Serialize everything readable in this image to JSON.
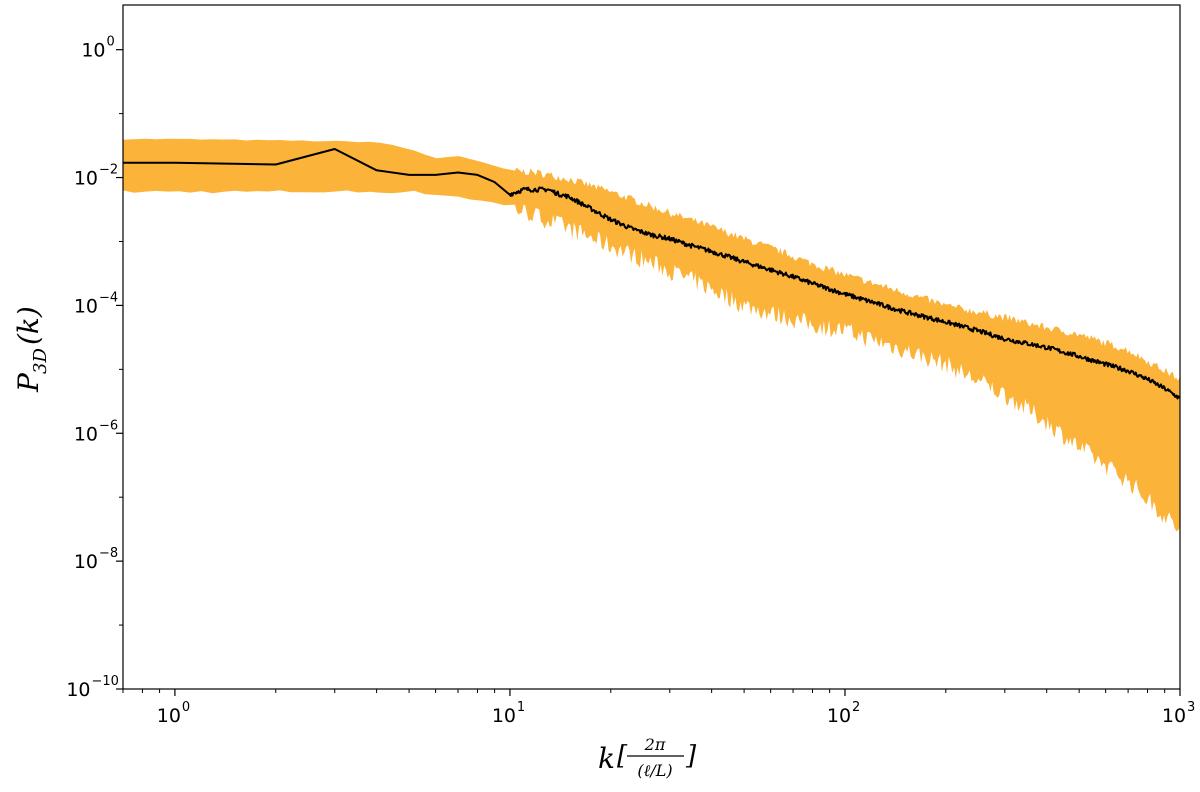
{
  "chart_data": {
    "type": "area",
    "title": "",
    "xlabel": {
      "base": "k",
      "bracket_open": "[",
      "numerator": "2π",
      "denominator": "(ℓ/L)",
      "bracket_close": "]"
    },
    "ylabel": {
      "base": "P",
      "subscript": "3D",
      "arg": "(k)"
    },
    "xscale": "log",
    "yscale": "log",
    "xlim": [
      0.7,
      1000
    ],
    "ylim": [
      1e-10,
      5
    ],
    "x_ticks": [
      {
        "value": 1,
        "base": "10",
        "exp": "0"
      },
      {
        "value": 10,
        "base": "10",
        "exp": "1"
      },
      {
        "value": 100,
        "base": "10",
        "exp": "2"
      },
      {
        "value": 1000,
        "base": "10",
        "exp": "3"
      }
    ],
    "y_ticks": [
      {
        "value": 1,
        "base": "10",
        "exp": "0"
      },
      {
        "value": 0.01,
        "base": "10",
        "exp": "−2"
      },
      {
        "value": 0.0001,
        "base": "10",
        "exp": "−4"
      },
      {
        "value": 1e-06,
        "base": "10",
        "exp": "−6"
      },
      {
        "value": 1e-08,
        "base": "10",
        "exp": "−8"
      },
      {
        "value": 1e-10,
        "base": "10",
        "exp": "−10"
      }
    ],
    "grid": false,
    "colors": {
      "line": "#000000",
      "band": "#fbb33a"
    },
    "series": [
      {
        "role": "mean",
        "x": [
          0.7,
          1,
          2,
          3,
          4,
          5,
          6,
          7,
          8,
          9,
          10,
          11,
          12,
          13,
          14,
          15,
          17,
          20,
          23,
          26,
          30,
          35,
          40,
          50,
          60,
          70,
          80,
          100,
          130,
          150,
          200,
          250,
          300,
          400,
          500,
          600,
          700,
          800,
          900,
          1000
        ],
        "y": [
          0.017,
          0.017,
          0.016,
          0.028,
          0.013,
          0.011,
          0.011,
          0.012,
          0.011,
          0.0085,
          0.0055,
          0.0065,
          0.0065,
          0.0065,
          0.0055,
          0.005,
          0.0035,
          0.0022,
          0.0016,
          0.0013,
          0.0011,
          0.00085,
          0.0007,
          0.00048,
          0.00036,
          0.00028,
          0.00022,
          0.00015,
          0.0001,
          8e-05,
          5.5e-05,
          4e-05,
          3e-05,
          2.2e-05,
          1.6e-05,
          1.2e-05,
          9.5e-06,
          7e-06,
          5e-06,
          3.5e-06
        ]
      },
      {
        "role": "band",
        "x": [
          0.7,
          1,
          2,
          3,
          4,
          5,
          6,
          7,
          8,
          9,
          10,
          12,
          15,
          20,
          30,
          40,
          50,
          60,
          80,
          100,
          150,
          200,
          300,
          400,
          500,
          700,
          1000
        ],
        "upper": [
          0.04,
          0.04,
          0.038,
          0.037,
          0.036,
          0.028,
          0.02,
          0.022,
          0.018,
          0.015,
          0.013,
          0.012,
          0.0095,
          0.006,
          0.0028,
          0.0017,
          0.0011,
          0.0008,
          0.00045,
          0.0003,
          0.00016,
          0.0001,
          6.5e-05,
          4.5e-05,
          3.5e-05,
          2e-05,
          7e-06
        ],
        "lower": [
          0.006,
          0.006,
          0.006,
          0.006,
          0.006,
          0.006,
          0.0055,
          0.005,
          0.0045,
          0.004,
          0.0035,
          0.0025,
          0.0016,
          0.00085,
          0.00035,
          0.00018,
          0.0001,
          7.5e-05,
          5e-05,
          4e-05,
          2e-05,
          1.2e-05,
          4e-06,
          1.5e-06,
          6e-07,
          1.8e-07,
          3e-08
        ]
      }
    ]
  }
}
